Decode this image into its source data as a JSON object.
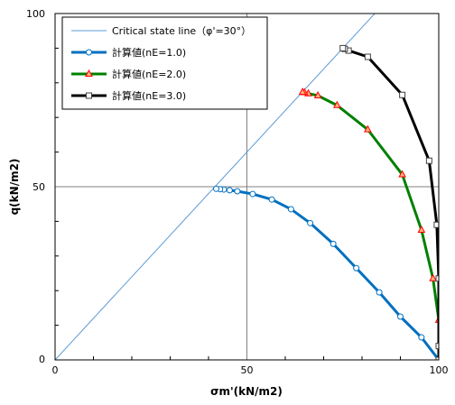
{
  "chart_data": {
    "type": "line",
    "xlabel": "σm'(kN/m2)",
    "ylabel": "q(kN/m2)",
    "xlim": [
      0,
      100
    ],
    "ylim": [
      0,
      100
    ],
    "x_ticks": [
      "0",
      "50",
      "100"
    ],
    "y_ticks": [
      "0",
      "50",
      "100"
    ],
    "grid": true,
    "legend_position": "top-left",
    "series": [
      {
        "name": "Critical state line（φ'=30°）",
        "style": "line",
        "color": "#5b9bd5",
        "x": [
          0,
          100
        ],
        "y": [
          0,
          120
        ]
      },
      {
        "name": "計算値(nE=1.0)",
        "style": "line-marker",
        "marker": "circle",
        "color": "#0070c0",
        "x": [
          100,
          95.5,
          90,
          84.5,
          78.5,
          72.5,
          66.5,
          61.5,
          56.5,
          51.5,
          47.5,
          45.5,
          44,
          43,
          42
        ],
        "y": [
          0,
          6.5,
          12.5,
          19.5,
          26.5,
          33.5,
          39.5,
          43.5,
          46.3,
          47.9,
          48.7,
          49,
          49.2,
          49.3,
          49.4
        ]
      },
      {
        "name": "計算値(nE=2.0)",
        "style": "line-marker",
        "marker": "triangle",
        "color": "#008000",
        "x": [
          100,
          100,
          98.5,
          95.5,
          90.5,
          81.5,
          73.5,
          68.5,
          66,
          65,
          64.5
        ],
        "y": [
          0,
          11.5,
          23.5,
          37.5,
          53.5,
          66.5,
          73.5,
          76.3,
          76.9,
          77.2,
          77.3
        ]
      },
      {
        "name": "計算値(nE=3.0)",
        "style": "line-marker",
        "marker": "square",
        "color": "#000000",
        "x": [
          100,
          100,
          100,
          99.5,
          97.5,
          90.5,
          81.5,
          76.5,
          75.5,
          75
        ],
        "y": [
          0,
          4,
          23.5,
          39,
          57.5,
          76.5,
          87.5,
          89.3,
          89.8,
          90
        ]
      }
    ]
  }
}
